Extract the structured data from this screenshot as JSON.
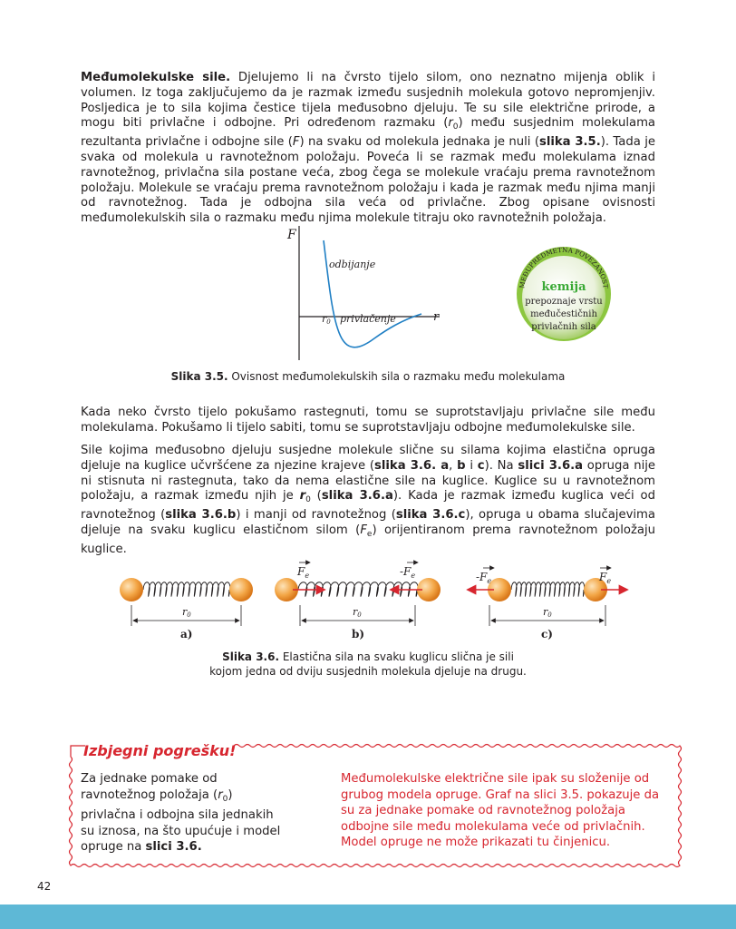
{
  "para1": {
    "lead": "Međumolekulske sile.",
    "t1": " Djelujemo li na čvrsto tijelo silom, ono neznatno mijenja oblik i volumen. Iz toga zaključujemo da je razmak između susjednih molekula gotovo nepromjenjiv. Posljedica je to sila kojima čestice tijela međusobno djeluju. Te su sile električne prirode, a mogu biti privlačne i odbojne. Pri određenom razmaku (",
    "r": "r",
    "r_sub": "0",
    "t2": ") među susjednim molekulama rezultanta privlačne i odbojne sile (",
    "F": "F",
    "t3": ") na svaku od molekula jednaka je nuli (",
    "ref": "slika 3.5.",
    "t4": "). Tada je svaka od molekula u ravnotežnom položaju. Poveća li se razmak među molekulama iznad ravnotežnog, privlačna sila postane veća, zbog čega se molekule vraćaju prema ravnotežnom položaju. Molekule se vraćaju prema ravnotežnom položaju i kada je razmak među njima manji od ravnotežnog. Tada je odbojna sila veća od privlačne. Zbog opisane ovisnosti međumolekulskih sila o razmaku među njima molekule titraju oko ravnotežnih položaja."
  },
  "graph": {
    "y_label": "F",
    "x_label": "r",
    "repulsion_label": "odbijanje",
    "attraction_label": "privlačenje",
    "r0_label": "r",
    "r0_sub": "0",
    "curve_color": "#1f7fc4"
  },
  "badge": {
    "arc_text": "MEĐUPREDMETNA POVEZANOST",
    "subject": "kemija",
    "line1": "prepoznaje vrstu",
    "line2": "međučestičnih",
    "line3": "privlačnih sila"
  },
  "caption35": {
    "label": "Slika 3.5.",
    "text": " Ovisnost međumolekulskih sila o razmaku među molekulama"
  },
  "para2": {
    "text": "Kada neko čvrsto tijelo pokušamo rastegnuti, tomu se suprotstavljaju privlačne sile među molekulama. Pokušamo li tijelo sabiti, tomu se suprotstavljaju odbojne međumolekulske sile."
  },
  "para3": {
    "t1": "Sile kojima međusobno djeluju susjedne molekule slične su silama kojima elastična opruga djeluje na kuglice učvršćene za njezine krajeve (",
    "ref1": "slika 3.6. a",
    "t2": ", ",
    "ref2": "b",
    "t3": " i ",
    "ref3": "c",
    "t4": "). Na ",
    "ref4": "slici 3.6.a",
    "t5": " opruga nije ni stisnuta ni rastegnuta, tako da nema elastične sile na kuglice. Kuglice su u ravnotežnom položaju, a razmak između njih je ",
    "r": "r",
    "r_sub": "0",
    "t6": " (",
    "ref5": "slika 3.6.a",
    "t7": "). Kada je razmak između kuglica veći od ravnotežnog (",
    "ref6": "slika 3.6.b",
    "t8": ") i manji od ravnotežnog (",
    "ref7": "slika 3.6.c",
    "t9": "), opruga u obama slučajevima djeluje na svaku kuglicu elastičnom silom (",
    "F": "F",
    "F_sub": "e",
    "t10": ") orijentiranom prema ravnotežnom položaju kuglice."
  },
  "springs": [
    {
      "label": "a)",
      "r0": "r",
      "r0_sub": "0"
    },
    {
      "label": "b)",
      "r0": "r",
      "r0_sub": "0",
      "f_left": "F",
      "f_left_sub": "e",
      "f_right": "-F",
      "f_right_sub": "e"
    },
    {
      "label": "c)",
      "r0": "r",
      "r0_sub": "0",
      "f_left": "-F",
      "f_left_sub": "e",
      "f_right": "F",
      "f_right_sub": "e"
    }
  ],
  "caption36": {
    "label": "Slika 3.6.",
    "line1": " Elastična sila na svaku kuglicu slična je sili",
    "line2": "kojom jedna od dviju susjednih molekula djeluje na drugu."
  },
  "warning": {
    "title": "Izbjegni pogrešku!",
    "left_t1": "Za jednake pomake od ravnotežnog položaja (",
    "left_r": "r",
    "left_r_sub": "0",
    "left_t2": ") privlačna i odbojna sila jednakih su iznosa, na što upućuje i model opruge na ",
    "left_ref": "slici 3.6.",
    "right": "Međumolekulske električne sile ipak su složenije od grubog modela opruge. Graf na slici 3.5. pokazuje da su za jednake pomake od ravnotežnog položaja odbojne sile među molekulama veće od privlačnih. Model opruge ne može prikazati tu činjenicu."
  },
  "page_number": "42"
}
